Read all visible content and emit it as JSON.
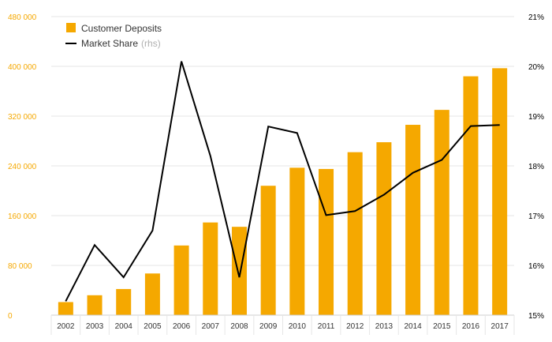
{
  "chart_data": {
    "type": "bar+line",
    "categories": [
      "2002",
      "2003",
      "2004",
      "2005",
      "2006",
      "2007",
      "2008",
      "2009",
      "2010",
      "2011",
      "2012",
      "2013",
      "2014",
      "2015",
      "2016",
      "2017"
    ],
    "series": [
      {
        "name": "Customer Deposits",
        "type": "bar",
        "axis": "left",
        "color": "#f5a800",
        "values": [
          21000,
          32000,
          42000,
          67000,
          112000,
          149000,
          142000,
          208000,
          237000,
          235000,
          262000,
          278000,
          306000,
          330000,
          384000,
          397000
        ]
      },
      {
        "name": "Market Share",
        "type": "line",
        "axis": "right",
        "color": "#000000",
        "values": [
          15.28,
          16.41,
          15.76,
          16.7,
          20.1,
          18.2,
          15.76,
          18.79,
          18.66,
          17.01,
          17.09,
          17.42,
          17.86,
          18.12,
          18.8,
          18.82
        ]
      }
    ],
    "legend": {
      "bar_label": "Customer Deposits",
      "line_label": "Market Share",
      "line_suffix": "(rhs)"
    },
    "y_left": {
      "lim": [
        0,
        480000
      ],
      "ticks": [
        0,
        80000,
        160000,
        240000,
        320000,
        400000,
        480000
      ],
      "tick_labels": [
        "0",
        "80 000",
        "160 000",
        "240 000",
        "320 000",
        "400 000",
        "480 000"
      ]
    },
    "y_right": {
      "lim": [
        15,
        21
      ],
      "ticks": [
        15,
        16,
        17,
        18,
        19,
        20,
        21
      ],
      "tick_labels": [
        "15%",
        "16%",
        "17%",
        "18%",
        "19%",
        "20%",
        "21%"
      ]
    },
    "title": "",
    "xlabel": "",
    "ylabel": "",
    "grid": true
  }
}
